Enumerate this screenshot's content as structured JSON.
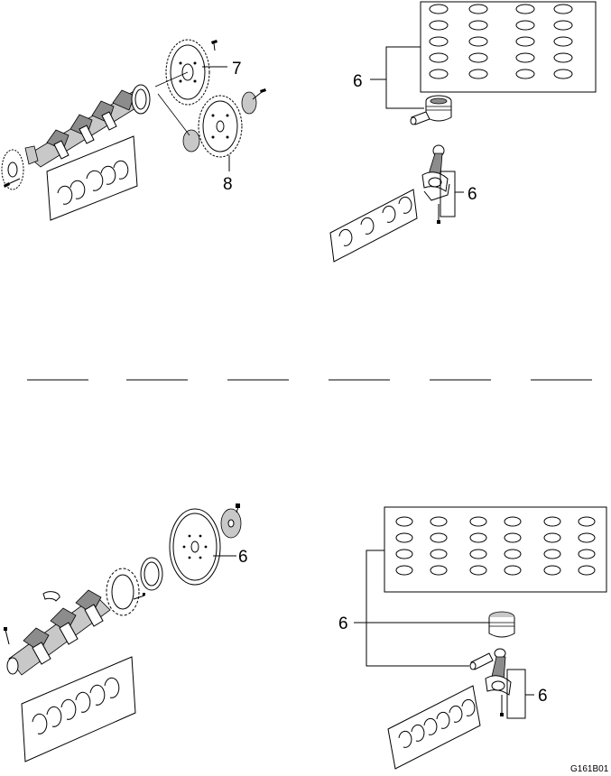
{
  "callouts": {
    "top_left_flywheel": "7",
    "top_left_flexplate": "8",
    "top_right_rings": "6",
    "top_right_rod": "6",
    "bottom_left_flexplate": "6",
    "bottom_right_piston": "6",
    "bottom_right_rod": "6"
  },
  "figure_id": "G161B01"
}
